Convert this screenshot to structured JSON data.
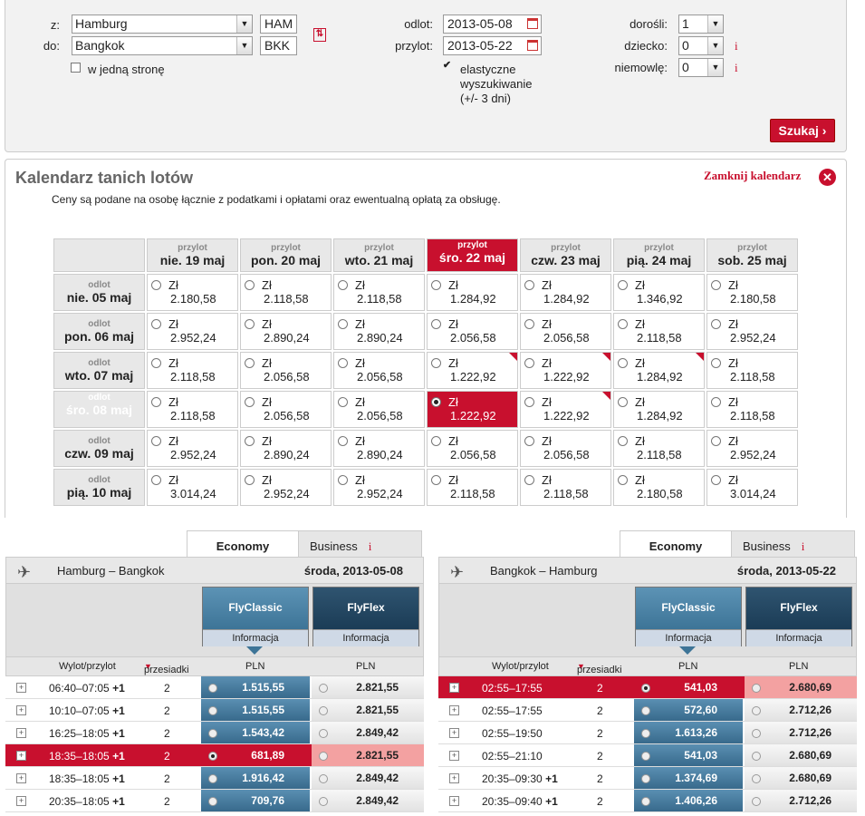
{
  "search": {
    "from_label": "z:",
    "to_label": "do:",
    "from_city": "Hamburg",
    "to_city": "Bangkok",
    "from_code": "HAM",
    "to_code": "BKK",
    "one_way_label": "w jedną stronę",
    "depart_label": "odlot:",
    "depart_date": "2013-05-08",
    "return_label": "przylot:",
    "return_date": "2013-05-22",
    "flexible_label_1": "elastyczne",
    "flexible_label_2": "wyszukiwanie",
    "flexible_label_3": "(+/- 3 dni)",
    "adults_label": "dorośli:",
    "adults": "1",
    "children_label": "dziecko:",
    "children": "0",
    "infants_label": "niemowlę:",
    "infants": "0",
    "info_mark": "i",
    "search_button": "Szukaj"
  },
  "calendar": {
    "title": "Kalendarz tanich lotów",
    "subtitle": "Ceny są podane na osobę łącznie z podatkami i opłatami oraz ewentualną opłatą za obsługę.",
    "close_label": "Zamknij kalendarz",
    "currency": "Zł",
    "col_prefix": "przylot",
    "row_prefix": "odlot",
    "columns": [
      "nie. 19 maj",
      "pon. 20 maj",
      "wto. 21 maj",
      "śro. 22 maj",
      "czw. 23 maj",
      "pią. 24 maj",
      "sob. 25 maj"
    ],
    "rows": [
      {
        "label": "nie. 05 maj",
        "prices": [
          "2.180,58",
          "2.118,58",
          "2.118,58",
          "1.284,92",
          "1.284,92",
          "1.346,92",
          "2.180,58"
        ]
      },
      {
        "label": "pon. 06 maj",
        "prices": [
          "2.952,24",
          "2.890,24",
          "2.890,24",
          "2.056,58",
          "2.056,58",
          "2.118,58",
          "2.952,24"
        ]
      },
      {
        "label": "wto. 07 maj",
        "prices": [
          "2.118,58",
          "2.056,58",
          "2.056,58",
          "1.222,92",
          "1.222,92",
          "1.284,92",
          "2.118,58"
        ]
      },
      {
        "label": "śro. 08 maj",
        "prices": [
          "2.118,58",
          "2.056,58",
          "2.056,58",
          "1.222,92",
          "1.222,92",
          "1.284,92",
          "2.118,58"
        ]
      },
      {
        "label": "czw. 09 maj",
        "prices": [
          "2.952,24",
          "2.890,24",
          "2.890,24",
          "2.056,58",
          "2.056,58",
          "2.118,58",
          "2.952,24"
        ]
      },
      {
        "label": "pią. 10 maj",
        "prices": [
          "3.014,24",
          "2.952,24",
          "2.952,24",
          "2.118,58",
          "2.118,58",
          "2.180,58",
          "3.014,24"
        ]
      }
    ]
  },
  "outbound": {
    "tab_economy": "Economy",
    "tab_business": "Business",
    "route": "Hamburg – Bangkok",
    "date": "środa, 2013-05-08",
    "fare1": "FlyClassic",
    "fare2": "FlyFlex",
    "fare_info": "Informacja",
    "col_time": "Wylot/przylot",
    "col_stops": "przesiadki",
    "col_cur1": "PLN",
    "col_cur2": "PLN",
    "flights": [
      {
        "time": "06:40–07:05",
        "plus": "+1",
        "stops": "2",
        "p1": "1.515,55",
        "p2": "2.821,55"
      },
      {
        "time": "10:10–07:05",
        "plus": "+1",
        "stops": "2",
        "p1": "1.515,55",
        "p2": "2.821,55"
      },
      {
        "time": "16:25–18:05",
        "plus": "+1",
        "stops": "2",
        "p1": "1.543,42",
        "p2": "2.849,42"
      },
      {
        "time": "18:35–18:05",
        "plus": "+1",
        "stops": "2",
        "p1": "681,89",
        "p2": "2.821,55"
      },
      {
        "time": "18:35–18:05",
        "plus": "+1",
        "stops": "2",
        "p1": "1.916,42",
        "p2": "2.849,42"
      },
      {
        "time": "20:35–18:05",
        "plus": "+1",
        "stops": "2",
        "p1": "709,76",
        "p2": "2.849,42"
      }
    ]
  },
  "inbound": {
    "tab_economy": "Economy",
    "tab_business": "Business",
    "route": "Bangkok – Hamburg",
    "date": "środa, 2013-05-22",
    "fare1": "FlyClassic",
    "fare2": "FlyFlex",
    "fare_info": "Informacja",
    "col_time": "Wylot/przylot",
    "col_stops": "przesiadki",
    "col_cur1": "PLN",
    "col_cur2": "PLN",
    "flights": [
      {
        "time": "02:55–17:55",
        "plus": "",
        "stops": "2",
        "p1": "541,03",
        "p2": "2.680,69"
      },
      {
        "time": "02:55–17:55",
        "plus": "",
        "stops": "2",
        "p1": "572,60",
        "p2": "2.712,26"
      },
      {
        "time": "02:55–19:50",
        "plus": "",
        "stops": "2",
        "p1": "1.613,26",
        "p2": "2.712,26"
      },
      {
        "time": "02:55–21:10",
        "plus": "",
        "stops": "2",
        "p1": "541,03",
        "p2": "2.680,69"
      },
      {
        "time": "20:35–09:30",
        "plus": "+1",
        "stops": "2",
        "p1": "1.374,69",
        "p2": "2.680,69"
      },
      {
        "time": "20:35–09:40",
        "plus": "+1",
        "stops": "2",
        "p1": "1.406,26",
        "p2": "2.712,26"
      }
    ]
  }
}
